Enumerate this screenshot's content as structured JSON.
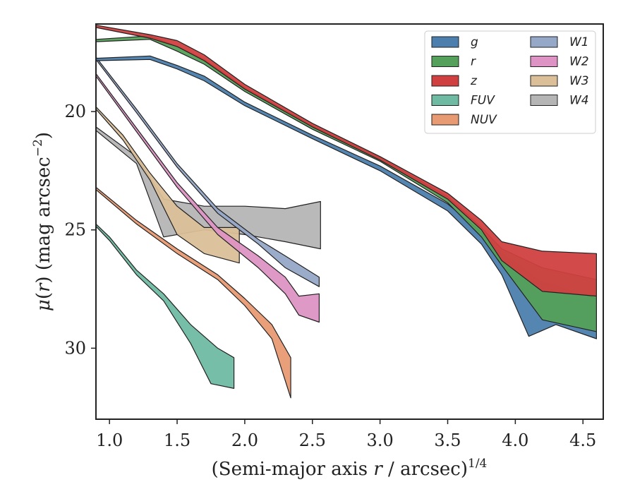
{
  "chart_data": {
    "type": "area",
    "xlabel": "(Semi-major axis r / arcsec)",
    "xlabel_parts": {
      "pre": "(Semi-major axis ",
      "var": "r",
      "post": " / arcsec)",
      "sup": "1/4"
    },
    "ylabel": "μ(r) (mag arcsec⁻²)",
    "ylabel_parts": {
      "mu": "μ",
      "open": "(",
      "var": "r",
      "close": ")",
      "unit": " (mag arcsec",
      "sup": "−2",
      "end": ")"
    },
    "xlim": [
      0.9,
      4.65
    ],
    "ylim": [
      33.0,
      16.3
    ],
    "y_inverted": true,
    "x_ticks": [
      1.0,
      1.5,
      2.0,
      2.5,
      3.0,
      3.5,
      4.0,
      4.5
    ],
    "x_tick_labels": [
      "1.0",
      "1.5",
      "2.0",
      "2.5",
      "3.0",
      "3.5",
      "4.0",
      "4.5"
    ],
    "y_ticks": [
      20,
      25,
      30
    ],
    "y_tick_labels": [
      "20",
      "25",
      "30"
    ],
    "grid": false,
    "legend_position": "top-right",
    "legend_columns": 2,
    "series": [
      {
        "name": "g",
        "color": "#4C7FAE",
        "upper": [
          [
            0.9,
            17.75
          ],
          [
            1.3,
            17.65
          ],
          [
            1.5,
            18.05
          ],
          [
            1.7,
            18.5
          ],
          [
            2.0,
            19.6
          ],
          [
            2.5,
            21.0
          ],
          [
            3.0,
            22.3
          ],
          [
            3.5,
            23.9
          ],
          [
            3.75,
            25.1
          ],
          [
            3.9,
            26.0
          ],
          [
            4.2,
            27.2
          ],
          [
            4.6,
            27.9
          ]
        ],
        "lower": [
          [
            0.9,
            17.85
          ],
          [
            1.3,
            17.8
          ],
          [
            1.5,
            18.2
          ],
          [
            1.7,
            18.7
          ],
          [
            2.0,
            19.75
          ],
          [
            2.5,
            21.15
          ],
          [
            3.0,
            22.5
          ],
          [
            3.5,
            24.2
          ],
          [
            3.75,
            25.6
          ],
          [
            3.9,
            26.9
          ],
          [
            4.1,
            29.5
          ],
          [
            4.3,
            29.0
          ],
          [
            4.6,
            29.6
          ]
        ]
      },
      {
        "name": "r",
        "color": "#55A05A",
        "upper": [
          [
            0.9,
            16.95
          ],
          [
            1.3,
            16.8
          ],
          [
            1.5,
            17.25
          ],
          [
            1.7,
            17.8
          ],
          [
            2.0,
            19.0
          ],
          [
            2.5,
            20.6
          ],
          [
            3.0,
            21.95
          ],
          [
            3.5,
            23.6
          ],
          [
            3.75,
            24.9
          ],
          [
            3.9,
            25.8
          ],
          [
            4.2,
            26.6
          ],
          [
            4.6,
            27.1
          ]
        ],
        "lower": [
          [
            0.9,
            17.05
          ],
          [
            1.3,
            16.95
          ],
          [
            1.5,
            17.45
          ],
          [
            1.7,
            18.0
          ],
          [
            2.0,
            19.15
          ],
          [
            2.5,
            20.75
          ],
          [
            3.0,
            22.1
          ],
          [
            3.5,
            23.85
          ],
          [
            3.75,
            25.3
          ],
          [
            3.9,
            26.5
          ],
          [
            4.2,
            28.8
          ],
          [
            4.6,
            29.3
          ]
        ]
      },
      {
        "name": "z",
        "color": "#D04040",
        "upper": [
          [
            0.9,
            16.35
          ],
          [
            1.3,
            16.75
          ],
          [
            1.5,
            17.0
          ],
          [
            1.7,
            17.6
          ],
          [
            2.0,
            18.85
          ],
          [
            2.5,
            20.5
          ],
          [
            3.0,
            21.9
          ],
          [
            3.5,
            23.45
          ],
          [
            3.75,
            24.6
          ],
          [
            3.9,
            25.5
          ],
          [
            4.2,
            25.9
          ],
          [
            4.6,
            26.0
          ]
        ],
        "lower": [
          [
            0.9,
            16.45
          ],
          [
            1.3,
            16.9
          ],
          [
            1.5,
            17.25
          ],
          [
            1.7,
            17.85
          ],
          [
            2.0,
            19.05
          ],
          [
            2.5,
            20.65
          ],
          [
            3.0,
            22.05
          ],
          [
            3.5,
            23.7
          ],
          [
            3.75,
            25.0
          ],
          [
            3.9,
            26.3
          ],
          [
            4.2,
            27.6
          ],
          [
            4.6,
            27.8
          ]
        ]
      },
      {
        "name": "FUV",
        "color": "#6FBAA3",
        "upper": [
          [
            0.9,
            24.75
          ],
          [
            1.0,
            25.3
          ],
          [
            1.2,
            26.7
          ],
          [
            1.4,
            27.7
          ],
          [
            1.6,
            29.0
          ],
          [
            1.8,
            30.0
          ],
          [
            1.92,
            30.4
          ]
        ],
        "lower": [
          [
            0.9,
            24.85
          ],
          [
            1.0,
            25.45
          ],
          [
            1.2,
            26.9
          ],
          [
            1.4,
            28.0
          ],
          [
            1.6,
            29.8
          ],
          [
            1.75,
            31.5
          ],
          [
            1.92,
            31.7
          ]
        ]
      },
      {
        "name": "NUV",
        "color": "#E89A72",
        "upper": [
          [
            0.9,
            23.2
          ],
          [
            1.2,
            24.6
          ],
          [
            1.5,
            25.8
          ],
          [
            1.8,
            26.9
          ],
          [
            2.0,
            27.9
          ],
          [
            2.2,
            29.0
          ],
          [
            2.34,
            30.4
          ]
        ],
        "lower": [
          [
            0.9,
            23.3
          ],
          [
            1.2,
            24.75
          ],
          [
            1.5,
            26.0
          ],
          [
            1.8,
            27.1
          ],
          [
            2.0,
            28.2
          ],
          [
            2.2,
            29.6
          ],
          [
            2.34,
            32.1
          ]
        ]
      },
      {
        "name": "W1",
        "color": "#96A8C8",
        "upper": [
          [
            0.9,
            17.7
          ],
          [
            1.2,
            19.9
          ],
          [
            1.5,
            22.2
          ],
          [
            1.8,
            24.1
          ],
          [
            2.1,
            25.4
          ],
          [
            2.3,
            26.1
          ],
          [
            2.55,
            27.0
          ]
        ],
        "lower": [
          [
            0.9,
            17.8
          ],
          [
            1.2,
            20.05
          ],
          [
            1.5,
            22.35
          ],
          [
            1.8,
            24.3
          ],
          [
            2.1,
            25.6
          ],
          [
            2.3,
            26.6
          ],
          [
            2.55,
            27.4
          ]
        ]
      },
      {
        "name": "W2",
        "color": "#DD93C3",
        "upper": [
          [
            0.9,
            18.4
          ],
          [
            1.2,
            20.7
          ],
          [
            1.5,
            23.0
          ],
          [
            1.8,
            24.9
          ],
          [
            2.1,
            26.1
          ],
          [
            2.3,
            27.0
          ],
          [
            2.4,
            27.8
          ],
          [
            2.55,
            27.7
          ]
        ],
        "lower": [
          [
            0.9,
            18.5
          ],
          [
            1.2,
            20.85
          ],
          [
            1.5,
            23.2
          ],
          [
            1.8,
            25.2
          ],
          [
            2.1,
            26.6
          ],
          [
            2.3,
            27.7
          ],
          [
            2.4,
            28.6
          ],
          [
            2.55,
            28.9
          ]
        ]
      },
      {
        "name": "W3",
        "color": "#DBBF99",
        "upper": [
          [
            0.9,
            19.8
          ],
          [
            1.1,
            21.0
          ],
          [
            1.3,
            22.6
          ],
          [
            1.5,
            24.0
          ],
          [
            1.7,
            24.9
          ],
          [
            1.96,
            24.9
          ]
        ],
        "lower": [
          [
            0.9,
            19.9
          ],
          [
            1.1,
            21.2
          ],
          [
            1.3,
            22.9
          ],
          [
            1.5,
            25.2
          ],
          [
            1.7,
            26.0
          ],
          [
            1.96,
            26.4
          ]
        ]
      },
      {
        "name": "W4",
        "color": "#B5B5B5",
        "upper": [
          [
            0.9,
            20.65
          ],
          [
            1.2,
            21.9
          ],
          [
            1.4,
            23.7
          ],
          [
            1.7,
            24.0
          ],
          [
            2.0,
            24.0
          ],
          [
            2.3,
            24.1
          ],
          [
            2.56,
            23.8
          ]
        ],
        "lower": [
          [
            0.9,
            20.8
          ],
          [
            1.2,
            22.2
          ],
          [
            1.4,
            25.3
          ],
          [
            1.7,
            25.0
          ],
          [
            2.0,
            25.2
          ],
          [
            2.3,
            25.5
          ],
          [
            2.56,
            25.8
          ]
        ]
      }
    ]
  }
}
